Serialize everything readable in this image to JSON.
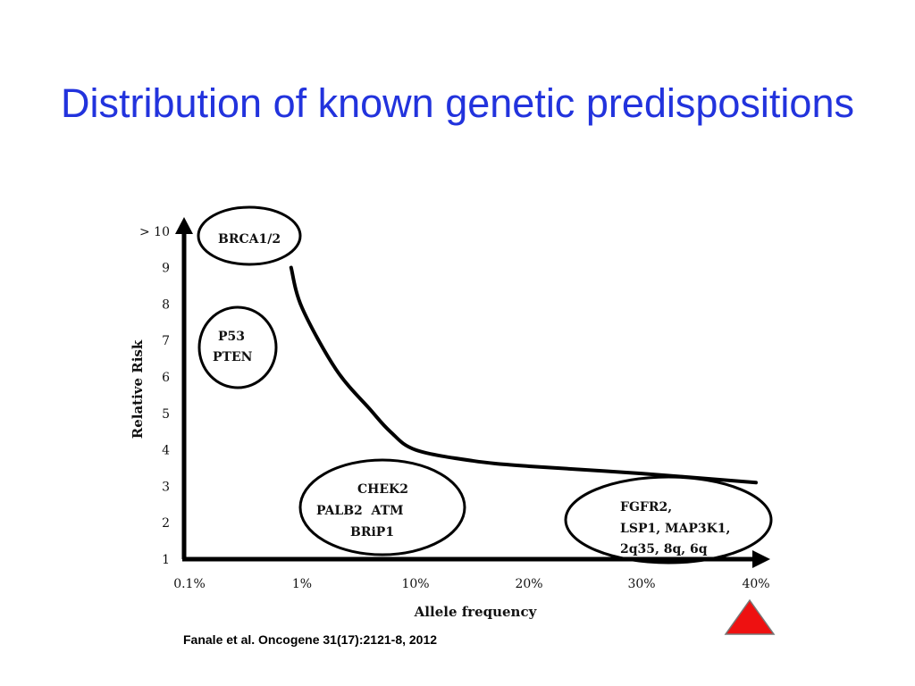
{
  "slide": {
    "title": "Distribution of known genetic predispositions",
    "citation": "Fanale et al. Oncogene 31(17):2121-8, 2012"
  },
  "marker": {
    "icon": "red-triangle-icon",
    "fill": "#ee1111",
    "stroke": "#777777"
  },
  "chart_data": {
    "type": "line",
    "xlabel": "Allele frequency",
    "ylabel": "Relative Risk",
    "x_ticks": [
      "0.1%",
      "1%",
      "10%",
      "20%",
      "30%",
      "40%"
    ],
    "y_ticks": [
      "1",
      "2",
      "3",
      "4",
      "5",
      "6",
      "7",
      "8",
      "9",
      "> 10"
    ],
    "ylim": [
      1,
      10
    ],
    "grid": false,
    "series": [
      {
        "x": [
          "0.8%",
          "1%",
          "2%",
          "4%",
          "6%",
          "10%",
          "15%",
          "20%",
          "30%",
          "40%"
        ],
        "y": [
          9.0,
          7.9,
          6.2,
          5.1,
          4.5,
          4.0,
          3.7,
          3.55,
          3.35,
          3.1
        ],
        "color": "#000000"
      }
    ],
    "groups": [
      {
        "lines": [
          "BRCA1/2"
        ]
      },
      {
        "lines": [
          "P53",
          "PTEN"
        ]
      },
      {
        "lines": [
          "CHEK2",
          "PALB2  ATM",
          "BRiP1"
        ]
      },
      {
        "lines": [
          "FGFR2,",
          "LSP1, MAP3K1,",
          "2q35, 8q, 6q"
        ]
      }
    ]
  }
}
